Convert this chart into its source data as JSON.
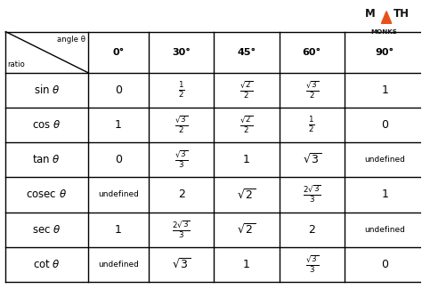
{
  "logo_triangle_color": "#e8521a",
  "col_labels": [
    "0°",
    "30°",
    "45°",
    "60°",
    "90°"
  ],
  "header_angle": "angle θ",
  "header_ratio": "ratio",
  "row_func_labels": [
    "sin",
    "cos",
    "tan",
    "cosec",
    "sec",
    "cot"
  ],
  "cells": [
    [
      "0",
      "\\frac{1}{2}",
      "\\frac{\\sqrt{2}}{2}",
      "\\frac{\\sqrt{3}}{2}",
      "1"
    ],
    [
      "1",
      "\\frac{\\sqrt{3}}{2}",
      "\\frac{\\sqrt{2}}{2}",
      "\\frac{1}{2}",
      "0"
    ],
    [
      "0",
      "\\frac{\\sqrt{3}}{3}",
      "1",
      "\\sqrt{3}",
      "undefined"
    ],
    [
      "undefined",
      "2",
      "\\sqrt{2}",
      "\\frac{2\\sqrt{3}}{3}",
      "1"
    ],
    [
      "1",
      "\\frac{2\\sqrt{3}}{3}",
      "\\sqrt{2}",
      "2",
      "undefined"
    ],
    [
      "undefined",
      "\\sqrt{3}",
      "1",
      "\\frac{\\sqrt{3}}{3}",
      "0"
    ]
  ],
  "background_color": "#ffffff",
  "line_color": "#000000",
  "text_color": "#000000",
  "figsize": [
    4.74,
    3.34
  ],
  "dpi": 100
}
